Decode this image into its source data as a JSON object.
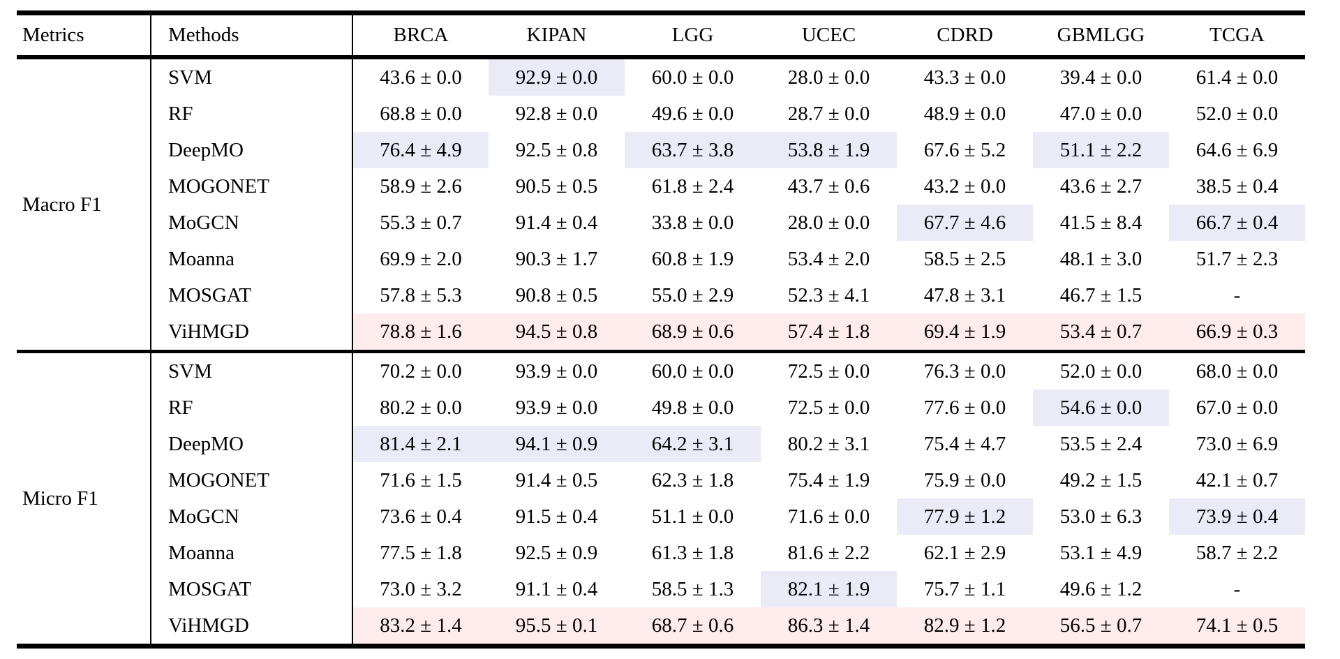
{
  "table": {
    "colors": {
      "second_best_bg": "#ebebf8",
      "best_bg": "#fdeceb",
      "rule_color": "#000000",
      "text_color": "#000000"
    },
    "columns": [
      "Metrics",
      "Methods",
      "BRCA",
      "KIPAN",
      "LGG",
      "UCEC",
      "CDRD",
      "GBMLGG",
      "TCGA"
    ],
    "sections": [
      {
        "metric": "Macro F1",
        "rows": [
          {
            "method": "SVM",
            "cells": [
              {
                "text": "43.6 ± 0.0"
              },
              {
                "text": "92.9 ± 0.0",
                "highlight": "blue"
              },
              {
                "text": "60.0 ± 0.0"
              },
              {
                "text": "28.0 ± 0.0"
              },
              {
                "text": "43.3 ± 0.0"
              },
              {
                "text": "39.4 ± 0.0"
              },
              {
                "text": "61.4 ± 0.0"
              }
            ]
          },
          {
            "method": "RF",
            "cells": [
              {
                "text": "68.8 ± 0.0"
              },
              {
                "text": "92.8 ± 0.0"
              },
              {
                "text": "49.6 ± 0.0"
              },
              {
                "text": "28.7 ± 0.0"
              },
              {
                "text": "48.9 ± 0.0"
              },
              {
                "text": "47.0 ± 0.0"
              },
              {
                "text": "52.0 ± 0.0"
              }
            ]
          },
          {
            "method": "DeepMO",
            "cells": [
              {
                "text": "76.4 ± 4.9",
                "highlight": "blue"
              },
              {
                "text": "92.5 ± 0.8"
              },
              {
                "text": "63.7 ± 3.8",
                "highlight": "blue"
              },
              {
                "text": "53.8 ± 1.9",
                "highlight": "blue"
              },
              {
                "text": "67.6 ± 5.2"
              },
              {
                "text": "51.1 ± 2.2",
                "highlight": "blue"
              },
              {
                "text": "64.6 ± 6.9"
              }
            ]
          },
          {
            "method": "MOGONET",
            "cells": [
              {
                "text": "58.9 ± 2.6"
              },
              {
                "text": "90.5 ± 0.5"
              },
              {
                "text": "61.8 ± 2.4"
              },
              {
                "text": "43.7 ± 0.6"
              },
              {
                "text": "43.2 ± 0.0"
              },
              {
                "text": "43.6 ± 2.7"
              },
              {
                "text": "38.5 ± 0.4"
              }
            ]
          },
          {
            "method": "MoGCN",
            "cells": [
              {
                "text": "55.3 ± 0.7"
              },
              {
                "text": "91.4 ± 0.4"
              },
              {
                "text": "33.8 ± 0.0"
              },
              {
                "text": "28.0 ± 0.0"
              },
              {
                "text": "67.7 ± 4.6",
                "highlight": "blue"
              },
              {
                "text": "41.5 ± 8.4"
              },
              {
                "text": "66.7 ± 0.4",
                "highlight": "blue"
              }
            ]
          },
          {
            "method": "Moanna",
            "cells": [
              {
                "text": "69.9 ± 2.0"
              },
              {
                "text": "90.3 ± 1.7"
              },
              {
                "text": "60.8 ± 1.9"
              },
              {
                "text": "53.4 ± 2.0"
              },
              {
                "text": "58.5 ± 2.5"
              },
              {
                "text": "48.1 ± 3.0"
              },
              {
                "text": "51.7 ± 2.3"
              }
            ]
          },
          {
            "method": "MOSGAT",
            "cells": [
              {
                "text": "57.8 ± 5.3"
              },
              {
                "text": "90.8 ± 0.5"
              },
              {
                "text": "55.0 ± 2.9"
              },
              {
                "text": "52.3 ± 4.1"
              },
              {
                "text": "47.8 ± 3.1"
              },
              {
                "text": "46.7 ± 1.5"
              },
              {
                "text": "-"
              }
            ]
          },
          {
            "method": "ViHMGD",
            "cells": [
              {
                "text": "78.8 ± 1.6",
                "highlight": "pink"
              },
              {
                "text": "94.5 ± 0.8",
                "highlight": "pink"
              },
              {
                "text": "68.9 ± 0.6",
                "highlight": "pink"
              },
              {
                "text": "57.4 ± 1.8",
                "highlight": "pink"
              },
              {
                "text": "69.4 ± 1.9",
                "highlight": "pink"
              },
              {
                "text": "53.4 ± 0.7",
                "highlight": "pink"
              },
              {
                "text": "66.9 ± 0.3",
                "highlight": "pink"
              }
            ]
          }
        ]
      },
      {
        "metric": "Micro F1",
        "rows": [
          {
            "method": "SVM",
            "cells": [
              {
                "text": "70.2 ± 0.0"
              },
              {
                "text": "93.9 ± 0.0"
              },
              {
                "text": "60.0 ± 0.0"
              },
              {
                "text": "72.5 ± 0.0"
              },
              {
                "text": "76.3 ± 0.0"
              },
              {
                "text": "52.0 ± 0.0"
              },
              {
                "text": "68.0 ± 0.0"
              }
            ]
          },
          {
            "method": "RF",
            "cells": [
              {
                "text": "80.2 ± 0.0"
              },
              {
                "text": "93.9 ± 0.0"
              },
              {
                "text": "49.8 ± 0.0"
              },
              {
                "text": "72.5 ± 0.0"
              },
              {
                "text": "77.6 ± 0.0"
              },
              {
                "text": "54.6 ± 0.0",
                "highlight": "blue"
              },
              {
                "text": "67.0 ± 0.0"
              }
            ]
          },
          {
            "method": "DeepMO",
            "cells": [
              {
                "text": "81.4 ± 2.1",
                "highlight": "blue"
              },
              {
                "text": "94.1 ± 0.9",
                "highlight": "blue"
              },
              {
                "text": "64.2 ± 3.1",
                "highlight": "blue"
              },
              {
                "text": "80.2 ± 3.1"
              },
              {
                "text": "75.4 ± 4.7"
              },
              {
                "text": "53.5 ± 2.4"
              },
              {
                "text": "73.0 ± 6.9"
              }
            ]
          },
          {
            "method": "MOGONET",
            "cells": [
              {
                "text": "71.6 ± 1.5"
              },
              {
                "text": "91.4 ± 0.5"
              },
              {
                "text": "62.3 ± 1.8"
              },
              {
                "text": "75.4 ± 1.9"
              },
              {
                "text": "75.9 ± 0.0"
              },
              {
                "text": "49.2 ± 1.5"
              },
              {
                "text": "42.1 ± 0.7"
              }
            ]
          },
          {
            "method": "MoGCN",
            "cells": [
              {
                "text": "73.6 ± 0.4"
              },
              {
                "text": "91.5 ± 0.4"
              },
              {
                "text": "51.1 ± 0.0"
              },
              {
                "text": "71.6 ± 0.0"
              },
              {
                "text": "77.9 ± 1.2",
                "highlight": "blue"
              },
              {
                "text": "53.0 ± 6.3"
              },
              {
                "text": "73.9 ± 0.4",
                "highlight": "blue"
              }
            ]
          },
          {
            "method": "Moanna",
            "cells": [
              {
                "text": "77.5 ± 1.8"
              },
              {
                "text": "92.5 ± 0.9"
              },
              {
                "text": "61.3 ± 1.8"
              },
              {
                "text": "81.6 ± 2.2"
              },
              {
                "text": "62.1 ± 2.9"
              },
              {
                "text": "53.1 ± 4.9"
              },
              {
                "text": "58.7 ± 2.2"
              }
            ]
          },
          {
            "method": "MOSGAT",
            "cells": [
              {
                "text": "73.0 ± 3.2"
              },
              {
                "text": "91.1 ± 0.4"
              },
              {
                "text": "58.5 ± 1.3"
              },
              {
                "text": "82.1 ± 1.9",
                "highlight": "blue"
              },
              {
                "text": "75.7 ± 1.1"
              },
              {
                "text": "49.6 ± 1.2"
              },
              {
                "text": "-"
              }
            ]
          },
          {
            "method": "ViHMGD",
            "cells": [
              {
                "text": "83.2 ± 1.4",
                "highlight": "pink"
              },
              {
                "text": "95.5 ± 0.1",
                "highlight": "pink"
              },
              {
                "text": "68.7 ± 0.6",
                "highlight": "pink"
              },
              {
                "text": "86.3 ± 1.4",
                "highlight": "pink"
              },
              {
                "text": "82.9 ± 1.2",
                "highlight": "pink"
              },
              {
                "text": "56.5 ± 0.7",
                "highlight": "pink"
              },
              {
                "text": "74.1 ± 0.5",
                "highlight": "pink"
              }
            ]
          }
        ]
      }
    ]
  }
}
